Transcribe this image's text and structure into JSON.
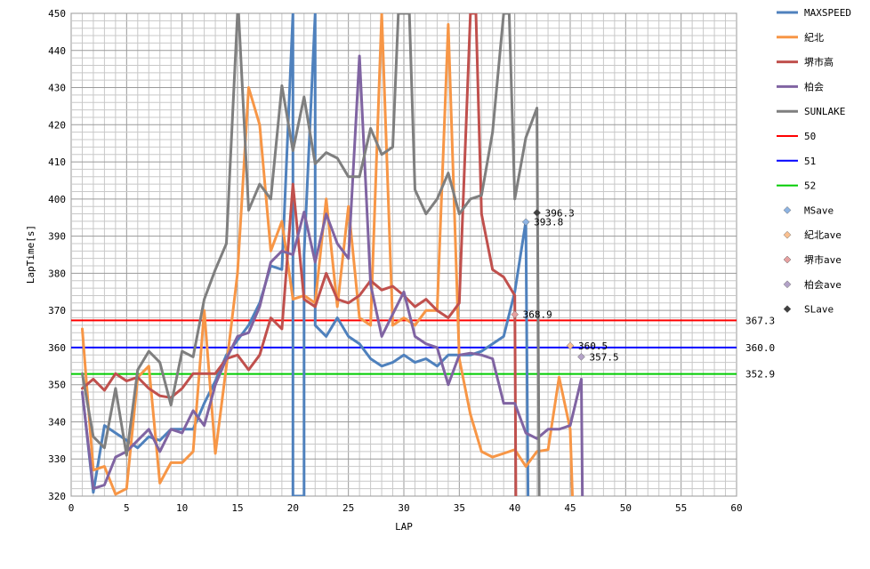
{
  "chart_data": {
    "type": "line",
    "xlabel": "LAP",
    "ylabel": "LapTime[s]",
    "xlim": [
      0,
      60
    ],
    "ylim": [
      320,
      450
    ],
    "x_ticks": [
      0,
      5,
      10,
      15,
      20,
      25,
      30,
      35,
      40,
      45,
      50,
      55,
      60
    ],
    "y_ticks": [
      320,
      330,
      340,
      350,
      360,
      370,
      380,
      390,
      400,
      410,
      420,
      430,
      440,
      450
    ],
    "grid": true,
    "legend_position": "right",
    "series": [
      {
        "name": "MAXSPEED",
        "color": "#4f81bd",
        "points": [
          [
            1,
            348
          ],
          [
            2,
            321
          ],
          [
            3,
            339
          ],
          [
            4,
            337
          ],
          [
            5,
            335
          ],
          [
            6,
            333
          ],
          [
            7,
            336
          ],
          [
            8,
            335
          ],
          [
            9,
            338
          ],
          [
            10,
            338
          ],
          [
            11,
            338
          ],
          [
            12,
            345
          ],
          [
            13,
            351
          ],
          [
            14,
            358
          ],
          [
            15,
            362
          ],
          [
            16,
            366
          ],
          [
            17,
            372
          ],
          [
            18,
            382
          ],
          [
            19,
            381
          ],
          [
            20,
            450
          ],
          [
            20,
            320
          ],
          [
            21,
            320
          ],
          [
            21,
            385
          ],
          [
            22,
            450
          ],
          [
            22,
            366
          ],
          [
            23,
            363
          ],
          [
            24,
            368
          ],
          [
            25,
            363
          ],
          [
            26,
            361
          ],
          [
            27,
            357
          ],
          [
            28,
            355
          ],
          [
            29,
            356
          ],
          [
            30,
            358
          ],
          [
            31,
            356
          ],
          [
            32,
            357
          ],
          [
            33,
            355
          ],
          [
            34,
            358
          ],
          [
            35,
            358
          ],
          [
            36,
            358
          ],
          [
            37,
            359
          ],
          [
            38,
            361
          ],
          [
            39,
            363
          ],
          [
            40,
            375
          ],
          [
            41,
            394
          ],
          [
            41.2,
            320
          ]
        ]
      },
      {
        "name": "紀北",
        "color": "#f79646",
        "points": [
          [
            1,
            365
          ],
          [
            2,
            327
          ],
          [
            3,
            328
          ],
          [
            4,
            320.5
          ],
          [
            5,
            322
          ],
          [
            6,
            352
          ],
          [
            7,
            355
          ],
          [
            8,
            323.5
          ],
          [
            9,
            329
          ],
          [
            10,
            329
          ],
          [
            11,
            332
          ],
          [
            12,
            370
          ],
          [
            13,
            331.5
          ],
          [
            14,
            355
          ],
          [
            15,
            380
          ],
          [
            16,
            430
          ],
          [
            17,
            420
          ],
          [
            18,
            386
          ],
          [
            19,
            394
          ],
          [
            20,
            373
          ],
          [
            21,
            374
          ],
          [
            22,
            372
          ],
          [
            23,
            400
          ],
          [
            24,
            371
          ],
          [
            25,
            398
          ],
          [
            26,
            368
          ],
          [
            27,
            366
          ],
          [
            28,
            450
          ],
          [
            29,
            366
          ],
          [
            30,
            368
          ],
          [
            31,
            366
          ],
          [
            32,
            370
          ],
          [
            33,
            370
          ],
          [
            34,
            447
          ],
          [
            35,
            357
          ],
          [
            36,
            342
          ],
          [
            37,
            332
          ],
          [
            38,
            330.5
          ],
          [
            39,
            331.5
          ],
          [
            40,
            332.5
          ],
          [
            41,
            328
          ],
          [
            42,
            332
          ],
          [
            43,
            332.5
          ],
          [
            44,
            352
          ],
          [
            45,
            338
          ],
          [
            45.2,
            320
          ]
        ]
      },
      {
        "name": "堺市高",
        "color": "#c0504d",
        "points": [
          [
            1,
            349
          ],
          [
            2,
            351.5
          ],
          [
            3,
            348.5
          ],
          [
            4,
            353
          ],
          [
            5,
            351
          ],
          [
            6,
            352
          ],
          [
            7,
            349
          ],
          [
            8,
            347
          ],
          [
            9,
            346.5
          ],
          [
            10,
            349
          ],
          [
            11,
            353
          ],
          [
            12,
            353
          ],
          [
            13,
            353
          ],
          [
            14,
            357
          ],
          [
            15,
            358
          ],
          [
            16,
            354
          ],
          [
            17,
            358
          ],
          [
            18,
            368
          ],
          [
            19,
            365
          ],
          [
            20,
            404
          ],
          [
            21,
            373
          ],
          [
            22,
            371
          ],
          [
            23,
            380
          ],
          [
            24,
            373
          ],
          [
            25,
            372
          ],
          [
            26,
            374
          ],
          [
            27,
            378
          ],
          [
            28,
            375.5
          ],
          [
            29,
            376.5
          ],
          [
            30,
            374
          ],
          [
            31,
            371
          ],
          [
            32,
            373
          ],
          [
            33,
            370
          ],
          [
            34,
            368
          ],
          [
            35,
            372
          ],
          [
            36,
            450
          ],
          [
            36.5,
            450
          ],
          [
            37,
            396
          ],
          [
            38,
            381
          ],
          [
            39,
            379
          ],
          [
            40,
            374
          ],
          [
            40.1,
            320
          ]
        ]
      },
      {
        "name": "柏会",
        "color": "#8064a2",
        "points": [
          [
            1,
            348
          ],
          [
            2,
            322
          ],
          [
            3,
            323
          ],
          [
            4,
            330.5
          ],
          [
            5,
            332
          ],
          [
            6,
            335
          ],
          [
            7,
            338
          ],
          [
            8,
            332
          ],
          [
            9,
            338
          ],
          [
            10,
            337
          ],
          [
            11,
            343
          ],
          [
            12,
            339
          ],
          [
            13,
            350
          ],
          [
            14,
            357
          ],
          [
            15,
            363
          ],
          [
            16,
            364
          ],
          [
            17,
            371
          ],
          [
            18,
            383
          ],
          [
            19,
            386
          ],
          [
            20,
            385
          ],
          [
            21,
            396.5
          ],
          [
            22,
            383
          ],
          [
            23,
            396
          ],
          [
            24,
            388
          ],
          [
            25,
            384
          ],
          [
            26,
            438.5
          ],
          [
            27,
            377
          ],
          [
            28,
            363
          ],
          [
            29,
            369
          ],
          [
            30,
            375
          ],
          [
            31,
            363
          ],
          [
            32,
            361
          ],
          [
            33,
            360
          ],
          [
            34,
            350
          ],
          [
            35,
            358
          ],
          [
            36,
            358.5
          ],
          [
            37,
            358
          ],
          [
            38,
            357
          ],
          [
            39,
            345
          ],
          [
            40,
            345
          ],
          [
            41,
            337
          ],
          [
            42,
            335.5
          ],
          [
            43,
            338
          ],
          [
            44,
            338
          ],
          [
            45,
            339
          ],
          [
            46,
            351.5
          ],
          [
            46.1,
            320
          ]
        ]
      },
      {
        "name": "SUNLAKE",
        "color": "#7f7f7f",
        "points": [
          [
            1,
            353
          ],
          [
            2,
            336
          ],
          [
            3,
            333
          ],
          [
            4,
            349
          ],
          [
            5,
            331
          ],
          [
            6,
            354
          ],
          [
            7,
            359
          ],
          [
            8,
            356
          ],
          [
            9,
            344.5
          ],
          [
            10,
            359
          ],
          [
            11,
            357.5
          ],
          [
            12,
            373
          ],
          [
            13,
            381
          ],
          [
            14,
            388
          ],
          [
            15,
            450
          ],
          [
            15.1,
            450
          ],
          [
            16,
            397
          ],
          [
            17,
            404
          ],
          [
            18,
            400
          ],
          [
            19,
            430.5
          ],
          [
            20,
            413
          ],
          [
            21,
            427.5
          ],
          [
            22,
            409.5
          ],
          [
            23,
            412.5
          ],
          [
            24,
            411
          ],
          [
            25,
            406
          ],
          [
            26,
            406
          ],
          [
            27,
            419
          ],
          [
            28,
            412
          ],
          [
            29,
            414
          ],
          [
            29.5,
            450
          ],
          [
            30.5,
            450
          ],
          [
            31,
            402.5
          ],
          [
            32,
            396
          ],
          [
            33,
            400
          ],
          [
            34,
            407
          ],
          [
            35,
            396
          ],
          [
            36,
            400
          ],
          [
            37,
            401
          ],
          [
            38,
            418
          ],
          [
            39,
            450
          ],
          [
            39.5,
            450
          ],
          [
            40,
            400
          ],
          [
            41,
            416.5
          ],
          [
            42,
            424.5
          ],
          [
            42.2,
            320
          ]
        ]
      }
    ],
    "hlines": [
      {
        "name": "50",
        "color": "#ff0000",
        "y": 367.3,
        "label": "367.3"
      },
      {
        "name": "51",
        "color": "#0000ff",
        "y": 360.0,
        "label": "360.0"
      },
      {
        "name": "52",
        "color": "#00cc00",
        "y": 352.9,
        "label": "352.9"
      }
    ],
    "markers": [
      {
        "name": "MSave",
        "color": "#8eb4e3",
        "x": 41,
        "y": 393.8,
        "label": "393.8"
      },
      {
        "name": "紀北ave",
        "color": "#fac090",
        "x": 45,
        "y": 360.5,
        "label": "360.5"
      },
      {
        "name": "堺市ave",
        "color": "#e6a0a0",
        "x": 40,
        "y": 368.9,
        "label": "368.9"
      },
      {
        "name": "柏会ave",
        "color": "#b3a2c7",
        "x": 46,
        "y": 357.5,
        "label": "357.5"
      },
      {
        "name": "SLave",
        "color": "#404040",
        "x": 42,
        "y": 396.3,
        "label": "396.3"
      }
    ]
  }
}
